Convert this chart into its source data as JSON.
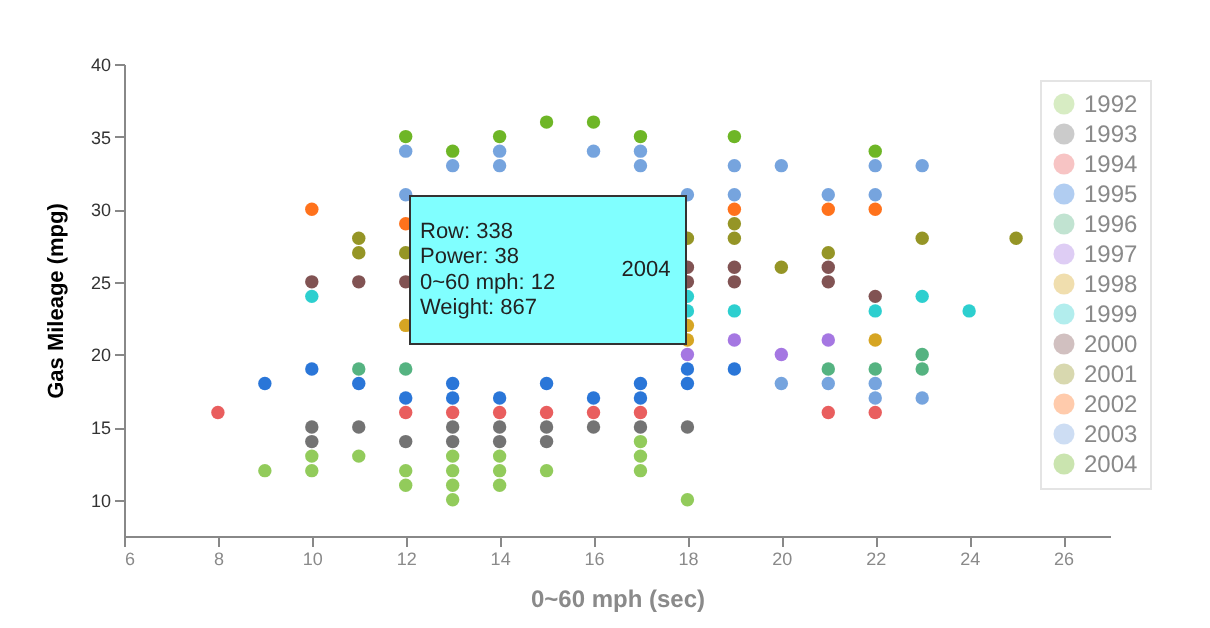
{
  "chart_data": {
    "type": "scatter",
    "xlabel": "0~60 mph (sec)",
    "ylabel": "Gas Mileage (mpg)",
    "xlim": [
      6,
      27
    ],
    "xticks": [
      6,
      8,
      10,
      12,
      14,
      16,
      18,
      20,
      22,
      24,
      26
    ],
    "ylim": [
      7.5,
      40
    ],
    "yticks": [
      10,
      15,
      20,
      25,
      30,
      35,
      40
    ],
    "grid": false,
    "legend": "top right",
    "marker": "circle",
    "annotations": [
      "Row: 338",
      "Power: 38",
      "0~60 mph: 12",
      "Weight: 867",
      "2004"
    ],
    "series": [
      {
        "name": "1992",
        "color": "#8cc852",
        "x": [
          9,
          10,
          10,
          11,
          12,
          12,
          13,
          13,
          13,
          13,
          14,
          14,
          14,
          15,
          17,
          17,
          17,
          18
        ],
        "values": [
          12,
          13,
          12,
          13,
          12,
          11,
          13,
          12,
          11,
          10,
          13,
          12,
          11,
          12,
          14,
          13,
          12,
          10
        ]
      },
      {
        "name": "1993",
        "color": "#6b6b6b",
        "x": [
          10,
          10,
          11,
          12,
          13,
          13,
          14,
          14,
          15,
          15,
          16,
          17,
          18
        ],
        "values": [
          15,
          14,
          15,
          14,
          15,
          14,
          15,
          14,
          15,
          14,
          15,
          15,
          15
        ]
      },
      {
        "name": "1994",
        "color": "#e85555",
        "x": [
          8,
          12,
          13,
          14,
          15,
          16,
          17,
          21,
          22
        ],
        "values": [
          16,
          16,
          16,
          16,
          16,
          16,
          16,
          16,
          16
        ]
      },
      {
        "name": "1995",
        "color": "#1f6fd6",
        "x": [
          9,
          10,
          11,
          12,
          13,
          13,
          14,
          15,
          16,
          17,
          17,
          18,
          18,
          19
        ],
        "values": [
          18,
          19,
          18,
          17,
          18,
          17,
          17,
          18,
          17,
          18,
          17,
          19,
          18,
          19
        ]
      },
      {
        "name": "1996",
        "color": "#4caf7a",
        "x": [
          11,
          12,
          21,
          22,
          23,
          23
        ],
        "values": [
          19,
          19,
          19,
          19,
          19,
          20
        ]
      },
      {
        "name": "1997",
        "color": "#a070e0",
        "x": [
          18,
          19,
          20,
          21
        ],
        "values": [
          20,
          21,
          20,
          21
        ]
      },
      {
        "name": "1998",
        "color": "#d4a017",
        "x": [
          12,
          18,
          18,
          22
        ],
        "values": [
          22,
          22,
          21,
          21
        ]
      },
      {
        "name": "1999",
        "color": "#22cccc",
        "x": [
          10,
          18,
          18,
          19,
          22,
          23,
          24
        ],
        "values": [
          24,
          24,
          23,
          23,
          23,
          24,
          23
        ]
      },
      {
        "name": "2000",
        "color": "#7a4a4a",
        "x": [
          10,
          11,
          12,
          18,
          18,
          19,
          19,
          21,
          21,
          22
        ],
        "values": [
          25,
          25,
          25,
          26,
          25,
          26,
          25,
          26,
          25,
          24
        ]
      },
      {
        "name": "2001",
        "color": "#8f8f1a",
        "x": [
          11,
          11,
          12,
          18,
          19,
          19,
          20,
          21,
          23,
          25
        ],
        "values": [
          28,
          27,
          27,
          28,
          29,
          28,
          26,
          27,
          28,
          28
        ]
      },
      {
        "name": "2002",
        "color": "#ff6a10",
        "x": [
          10,
          12,
          19,
          21,
          22
        ],
        "values": [
          30,
          29,
          30,
          30,
          30
        ]
      },
      {
        "name": "2003",
        "color": "#6f9fdc",
        "x": [
          12,
          12,
          13,
          14,
          14,
          16,
          17,
          17,
          18,
          19,
          19,
          20,
          21,
          22,
          22,
          23,
          20,
          21,
          22,
          22,
          23
        ],
        "values": [
          34,
          31,
          33,
          34,
          33,
          34,
          34,
          33,
          31,
          33,
          31,
          33,
          31,
          33,
          31,
          33,
          18,
          18,
          18,
          17,
          17
        ]
      },
      {
        "name": "2004",
        "color": "#66b21a",
        "x": [
          12,
          13,
          14,
          15,
          16,
          17,
          19,
          22
        ],
        "values": [
          35,
          34,
          35,
          36,
          36,
          35,
          35,
          34
        ]
      }
    ]
  }
}
